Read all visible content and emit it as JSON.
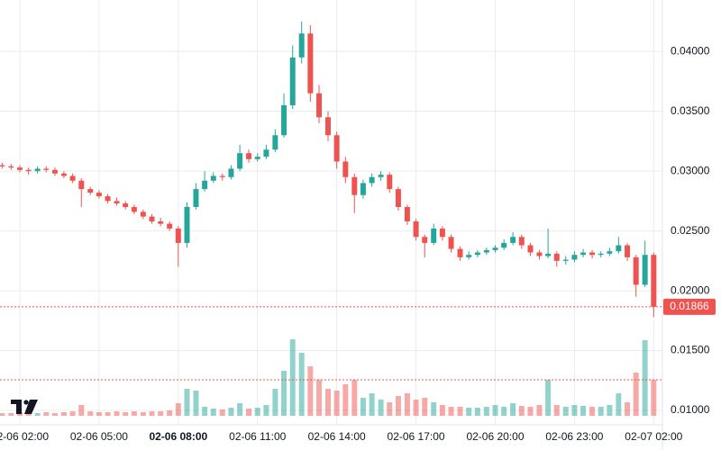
{
  "chart_data": {
    "type": "candlestick",
    "x": [
      1.33,
      1.67,
      2,
      2.33,
      2.67,
      3,
      3.33,
      3.67,
      4,
      4.33,
      4.67,
      5,
      5.33,
      5.67,
      6,
      6.33,
      6.67,
      7,
      7.33,
      7.67,
      8,
      8.33,
      8.67,
      9,
      9.33,
      9.67,
      10,
      10.33,
      10.67,
      11,
      11.33,
      11.67,
      12,
      12.33,
      12.67,
      13,
      13.33,
      13.67,
      14,
      14.33,
      14.67,
      15,
      15.33,
      15.67,
      16,
      16.33,
      16.67,
      17,
      17.33,
      17.67,
      18,
      18.33,
      18.67,
      19,
      19.33,
      19.67,
      20,
      20.33,
      20.67,
      21,
      21.33,
      21.67,
      22,
      22.33,
      22.67,
      23,
      23.33,
      23.67,
      24,
      24.33,
      24.67,
      25,
      25.33,
      25.67,
      26
    ],
    "open": [
      0.0305,
      0.0304,
      0.0303,
      0.0301,
      0.03,
      0.0302,
      0.0301,
      0.0298,
      0.0296,
      0.0292,
      0.0285,
      0.0282,
      0.0279,
      0.0275,
      0.0273,
      0.027,
      0.0266,
      0.0262,
      0.0258,
      0.0256,
      0.0252,
      0.024,
      0.027,
      0.0285,
      0.0292,
      0.0296,
      0.0295,
      0.0302,
      0.0315,
      0.031,
      0.0312,
      0.0318,
      0.033,
      0.0355,
      0.0395,
      0.0415,
      0.0365,
      0.0345,
      0.033,
      0.0308,
      0.0295,
      0.028,
      0.029,
      0.0295,
      0.0297,
      0.0285,
      0.027,
      0.0258,
      0.0245,
      0.024,
      0.0252,
      0.0245,
      0.0235,
      0.0228,
      0.023,
      0.0232,
      0.0234,
      0.0236,
      0.024,
      0.0245,
      0.0238,
      0.0232,
      0.0229,
      0.0231,
      0.0225,
      0.0226,
      0.023,
      0.0232,
      0.023,
      0.0231,
      0.0233,
      0.0238,
      0.0228,
      0.0205,
      0.023
    ],
    "high": [
      0.0307,
      0.0306,
      0.0305,
      0.0303,
      0.0304,
      0.0304,
      0.0303,
      0.03,
      0.0298,
      0.0294,
      0.0287,
      0.0284,
      0.0281,
      0.0278,
      0.0275,
      0.0272,
      0.0268,
      0.0264,
      0.0261,
      0.0258,
      0.0254,
      0.0274,
      0.029,
      0.03,
      0.0299,
      0.0298,
      0.0305,
      0.0322,
      0.0318,
      0.0315,
      0.0322,
      0.0335,
      0.0365,
      0.0405,
      0.0425,
      0.0422,
      0.0372,
      0.035,
      0.0333,
      0.0312,
      0.0298,
      0.0293,
      0.0298,
      0.03,
      0.0299,
      0.0287,
      0.0272,
      0.026,
      0.0247,
      0.0256,
      0.0254,
      0.0247,
      0.0237,
      0.0233,
      0.0234,
      0.0236,
      0.0238,
      0.0243,
      0.0249,
      0.0247,
      0.024,
      0.0234,
      0.0252,
      0.0233,
      0.0229,
      0.0233,
      0.0235,
      0.0234,
      0.0233,
      0.0236,
      0.0245,
      0.024,
      0.023,
      0.0242,
      0.0232
    ],
    "low": [
      0.0302,
      0.0301,
      0.0299,
      0.0297,
      0.0298,
      0.0299,
      0.0296,
      0.0294,
      0.029,
      0.027,
      0.028,
      0.0277,
      0.0273,
      0.0271,
      0.0268,
      0.0264,
      0.026,
      0.0256,
      0.0254,
      0.025,
      0.022,
      0.0236,
      0.0268,
      0.0283,
      0.029,
      0.0292,
      0.0293,
      0.03,
      0.0307,
      0.0308,
      0.031,
      0.0316,
      0.0328,
      0.0352,
      0.039,
      0.0358,
      0.034,
      0.0325,
      0.0302,
      0.029,
      0.0265,
      0.0277,
      0.0287,
      0.0292,
      0.0282,
      0.0267,
      0.0255,
      0.0242,
      0.0228,
      0.0238,
      0.0242,
      0.0232,
      0.0225,
      0.0226,
      0.0228,
      0.023,
      0.0232,
      0.0234,
      0.0238,
      0.0235,
      0.0229,
      0.0226,
      0.0227,
      0.022,
      0.0222,
      0.0224,
      0.0228,
      0.0227,
      0.0228,
      0.0229,
      0.0231,
      0.0225,
      0.0195,
      0.0203,
      0.0178
    ],
    "close": [
      0.0304,
      0.0303,
      0.0301,
      0.03,
      0.0302,
      0.0301,
      0.0298,
      0.0296,
      0.0292,
      0.0285,
      0.0282,
      0.0279,
      0.0275,
      0.0273,
      0.027,
      0.0266,
      0.0262,
      0.0258,
      0.0256,
      0.0252,
      0.024,
      0.027,
      0.0285,
      0.0292,
      0.0296,
      0.0295,
      0.0302,
      0.0315,
      0.031,
      0.0312,
      0.0318,
      0.033,
      0.0355,
      0.0395,
      0.0415,
      0.0365,
      0.0345,
      0.033,
      0.0308,
      0.0295,
      0.028,
      0.029,
      0.0295,
      0.0297,
      0.0285,
      0.027,
      0.0258,
      0.0245,
      0.024,
      0.0252,
      0.0245,
      0.0235,
      0.0228,
      0.023,
      0.0232,
      0.0234,
      0.0236,
      0.024,
      0.0245,
      0.0238,
      0.0232,
      0.0229,
      0.0231,
      0.0225,
      0.0226,
      0.023,
      0.0232,
      0.023,
      0.0231,
      0.0233,
      0.0238,
      0.0228,
      0.0205,
      0.023,
      0.01866
    ],
    "volume": [
      3,
      3,
      4,
      3,
      3,
      4,
      3,
      4,
      5,
      12,
      5,
      4,
      4,
      5,
      4,
      5,
      4,
      5,
      5,
      6,
      14,
      30,
      28,
      10,
      8,
      7,
      9,
      14,
      8,
      9,
      12,
      30,
      50,
      85,
      70,
      55,
      40,
      30,
      28,
      35,
      40,
      20,
      25,
      18,
      15,
      22,
      25,
      18,
      20,
      15,
      12,
      10,
      10,
      9,
      9,
      10,
      12,
      10,
      14,
      11,
      10,
      12,
      40,
      12,
      10,
      12,
      11,
      10,
      10,
      12,
      25,
      15,
      48,
      84,
      40
    ],
    "up_color": "#26a69a",
    "down_color": "#ef5350",
    "xlim": [
      1.25,
      26.33
    ],
    "xticks": [
      {
        "value": 2,
        "label": "02-06 02:00"
      },
      {
        "value": 5,
        "label": "02-06 05:00"
      },
      {
        "value": 8,
        "label": "02-06 08:00"
      },
      {
        "value": 11,
        "label": "02-06 11:00"
      },
      {
        "value": 14,
        "label": "02-06 14:00"
      },
      {
        "value": 17,
        "label": "02-06 17:00"
      },
      {
        "value": 20,
        "label": "02-06 20:00"
      },
      {
        "value": 23,
        "label": "02-06 23:00"
      },
      {
        "value": 26,
        "label": "02-07 02:00"
      }
    ],
    "bold_xtick_index": 2,
    "ylim": [
      0.0088,
      0.0443
    ],
    "yticks": [
      {
        "value": 0.01,
        "label": "0.01000"
      },
      {
        "value": 0.015,
        "label": "0.01500"
      },
      {
        "value": 0.02,
        "label": "0.02000"
      },
      {
        "value": 0.025,
        "label": "0.02500"
      },
      {
        "value": 0.03,
        "label": "0.03000"
      },
      {
        "value": 0.035,
        "label": "0.03500"
      },
      {
        "value": 0.04,
        "label": "0.04000"
      }
    ],
    "vlim": [
      0,
      100
    ],
    "last_price": 0.01866,
    "grid": true
  }
}
